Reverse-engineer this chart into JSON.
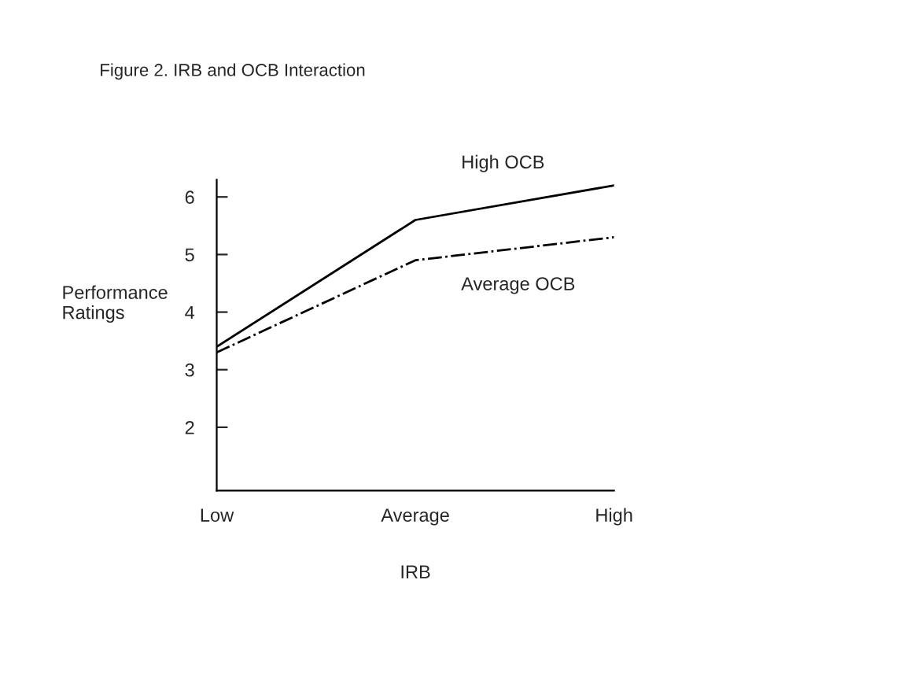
{
  "chart_data": {
    "type": "line",
    "title": "Figure 2. IRB and OCB Interaction",
    "xlabel": "IRB",
    "ylabel": "Performance\nRatings",
    "categories": [
      "Low",
      "Average",
      "High"
    ],
    "series": [
      {
        "name": "High OCB",
        "color": "#000000",
        "line_style": "solid",
        "values": [
          3.4,
          5.6,
          6.2
        ]
      },
      {
        "name": "Average OCB",
        "color": "#000000",
        "line_style": "dashdot",
        "values": [
          3.3,
          4.9,
          5.3
        ]
      }
    ],
    "ylim": [
      0.9,
      6.3
    ],
    "yticks": [
      2,
      3,
      4,
      5,
      6
    ],
    "grid": false,
    "legend": false,
    "marker": "none"
  }
}
